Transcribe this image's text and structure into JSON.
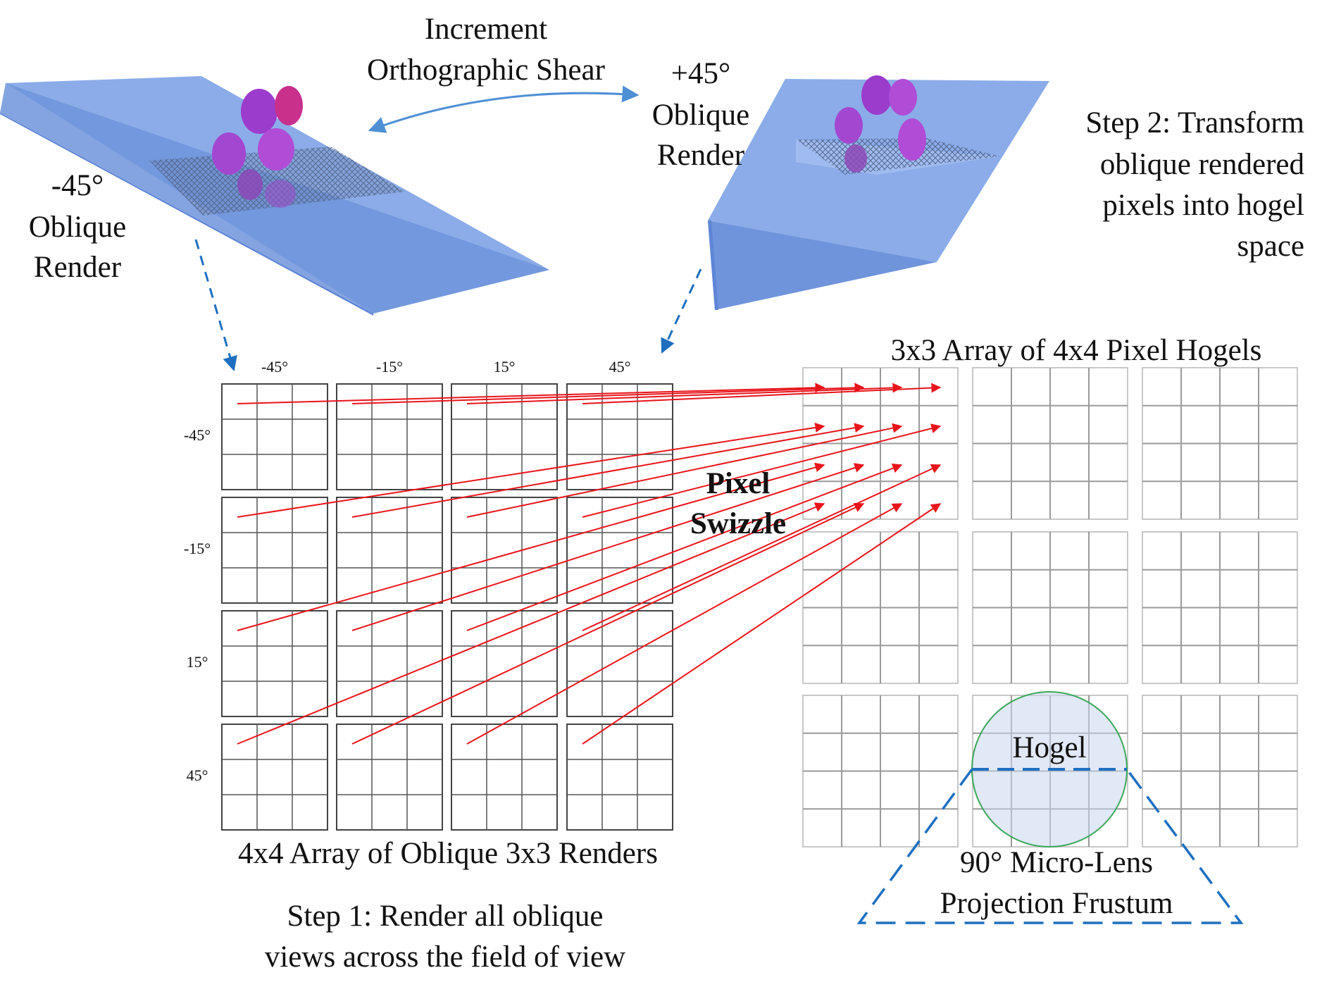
{
  "labels": {
    "increment_line1": "Increment",
    "increment_line2": "Orthographic Shear",
    "left_view_line1": "-45°",
    "left_view_line2": "Oblique",
    "left_view_line3": "Render",
    "right_view_line1": "+45°",
    "right_view_line2": "Oblique",
    "right_view_line3": "Render",
    "step2_line1": "Step 2: Transform",
    "step2_line2": "oblique rendered",
    "step2_line3": "pixels into hogel",
    "step2_line4": "space",
    "hogel_array_title": "3x3  Array of 4x4 Pixel Hogels",
    "pixel_swizzle_line1": "Pixel",
    "pixel_swizzle_line2": "Swizzle",
    "renders_array_title": "4x4  Array of Oblique 3x3 Renders",
    "step1_line1": "Step 1: Render all oblique",
    "step1_line2": "views across the field of view",
    "hogel": "Hogel",
    "frustum_line1": "90° Micro-Lens",
    "frustum_line2": "Projection Frustum"
  },
  "column_angles": [
    "-45°",
    "-15°",
    "15°",
    "45°"
  ],
  "row_angles": [
    "-45°",
    "-15°",
    "15°",
    "45°"
  ],
  "colors": {
    "prism_fill": "#7ea3e6",
    "prism_top": "#a9c2f2",
    "prism_side": "#5f86d6",
    "flower": "#b04cd6",
    "arrow_red": "#e8141b",
    "dashed_blue": "#1f6fc0",
    "shear_arrow": "#4f8fd6",
    "render_grid": "#444444",
    "hogel_grid": "#9a9a9a",
    "hogel_circle": "#3aa85a",
    "hogel_circle_fill": "#c9d6ee"
  }
}
